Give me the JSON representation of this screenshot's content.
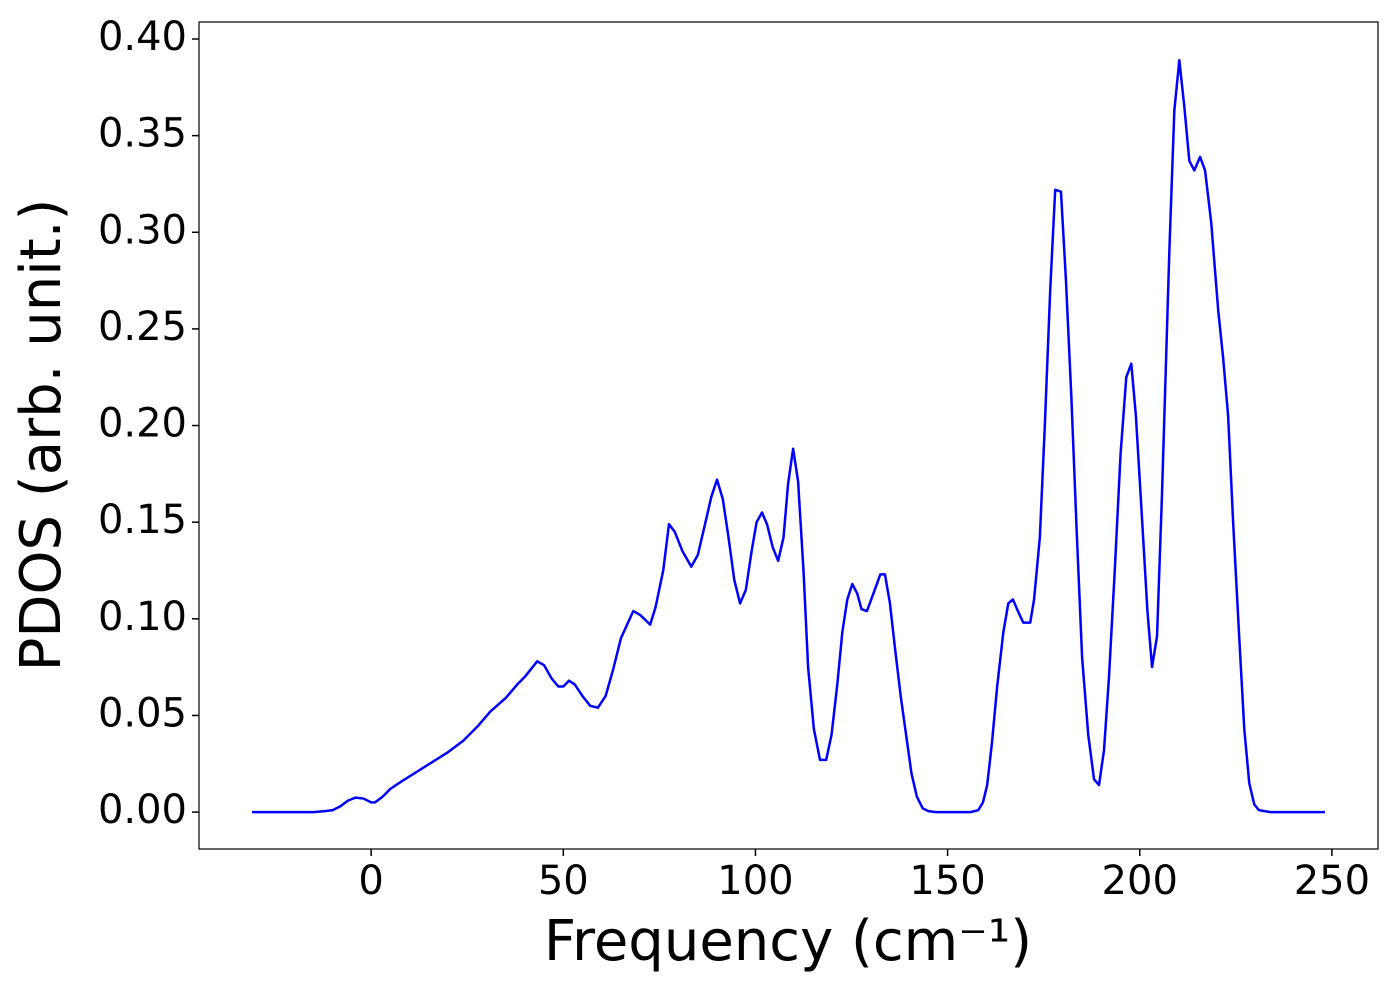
{
  "chart_data": {
    "type": "line",
    "xlabel": "Frequency (cm⁻¹)",
    "ylabel": "PDOS (arb. unit.)",
    "x": [
      -31,
      -15,
      -12,
      -10,
      -8,
      -6,
      -4,
      -2,
      0,
      1,
      3,
      5,
      8,
      12,
      16,
      20,
      24,
      28,
      31,
      35,
      38,
      40,
      43.2,
      45,
      47,
      48.7,
      50,
      51.5,
      53,
      55,
      57,
      59,
      61,
      63,
      65,
      68.2,
      70,
      72.6,
      74,
      76,
      77.5,
      79,
      81,
      83.3,
      85,
      87,
      88.5,
      90,
      91.5,
      93,
      94.5,
      96,
      97.5,
      99,
      100.3,
      101.7,
      103,
      104.5,
      105.9,
      107.3,
      108.5,
      109.8,
      111.1,
      112.5,
      113.7,
      115.2,
      116.8,
      118.4,
      119.8,
      121.3,
      122.6,
      123.9,
      125.2,
      126.5,
      127.6,
      129,
      130.5,
      132.5,
      133.7,
      135,
      136.3,
      137.8,
      139.2,
      140.6,
      142,
      143.5,
      145,
      147,
      152,
      156,
      158,
      159.2,
      160.3,
      161.5,
      162.9,
      164.5,
      165.8,
      167,
      168.3,
      169.7,
      171.5,
      172.5,
      174,
      175.3,
      176.7,
      178,
      179.5,
      180.8,
      182.2,
      183.6,
      185,
      186.6,
      188.1,
      189.4,
      190.7,
      192,
      193.5,
      195,
      196.5,
      197.8,
      199,
      200.5,
      202,
      203.2,
      204.5,
      205.8,
      207.7,
      209,
      210.3,
      211.6,
      212.9,
      214.2,
      215.7,
      217,
      218.6,
      220.4,
      221.7,
      223,
      224.3,
      225.9,
      227.2,
      228.5,
      229.8,
      231,
      234,
      248.2
    ],
    "series": [
      {
        "name": "PDOS",
        "color": "#0000ff",
        "values": [
          0,
          0,
          0.0005,
          0.001,
          0.003,
          0.006,
          0.0075,
          0.007,
          0.005,
          0.005,
          0.008,
          0.012,
          0.016,
          0.021,
          0.026,
          0.031,
          0.037,
          0.045,
          0.052,
          0.059,
          0.066,
          0.07,
          0.078,
          0.076,
          0.069,
          0.065,
          0.065,
          0.068,
          0.066,
          0.06,
          0.055,
          0.054,
          0.06,
          0.074,
          0.09,
          0.104,
          0.102,
          0.097,
          0.106,
          0.125,
          0.149,
          0.145,
          0.135,
          0.127,
          0.133,
          0.15,
          0.163,
          0.172,
          0.162,
          0.142,
          0.12,
          0.108,
          0.115,
          0.135,
          0.15,
          0.155,
          0.149,
          0.137,
          0.13,
          0.142,
          0.17,
          0.188,
          0.171,
          0.125,
          0.075,
          0.043,
          0.027,
          0.027,
          0.04,
          0.066,
          0.093,
          0.11,
          0.118,
          0.113,
          0.105,
          0.104,
          0.112,
          0.123,
          0.123,
          0.108,
          0.085,
          0.06,
          0.04,
          0.02,
          0.008,
          0.002,
          0.0005,
          0,
          0,
          0,
          0.001,
          0.005,
          0.014,
          0.035,
          0.065,
          0.093,
          0.108,
          0.11,
          0.104,
          0.098,
          0.098,
          0.11,
          0.142,
          0.2,
          0.27,
          0.322,
          0.321,
          0.275,
          0.215,
          0.145,
          0.08,
          0.04,
          0.017,
          0.014,
          0.032,
          0.07,
          0.125,
          0.185,
          0.225,
          0.232,
          0.205,
          0.155,
          0.104,
          0.075,
          0.091,
          0.165,
          0.29,
          0.363,
          0.389,
          0.365,
          0.337,
          0.332,
          0.339,
          0.332,
          0.305,
          0.26,
          0.235,
          0.205,
          0.15,
          0.09,
          0.043,
          0.015,
          0.004,
          0.001,
          0,
          0
        ]
      }
    ],
    "xlim": [
      -44.8,
      262.0
    ],
    "ylim": [
      -0.0191,
      0.4088
    ],
    "xticks": [
      0,
      50,
      100,
      150,
      200,
      250
    ],
    "yticks": [
      {
        "value": 0,
        "label": "0.00"
      },
      {
        "value": 0.05,
        "label": "0.05"
      },
      {
        "value": 0.1,
        "label": "0.10"
      },
      {
        "value": 0.15,
        "label": "0.15"
      },
      {
        "value": 0.2,
        "label": "0.20"
      },
      {
        "value": 0.25,
        "label": "0.25"
      },
      {
        "value": 0.3,
        "label": "0.30"
      },
      {
        "value": 0.35,
        "label": "0.35"
      },
      {
        "value": 0.4,
        "label": "0.40"
      }
    ],
    "grid": false
  }
}
